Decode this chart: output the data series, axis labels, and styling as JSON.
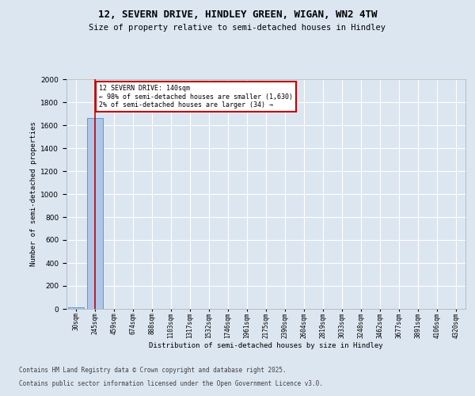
{
  "title1": "12, SEVERN DRIVE, HINDLEY GREEN, WIGAN, WN2 4TW",
  "title2": "Size of property relative to semi-detached houses in Hindley",
  "xlabel": "Distribution of semi-detached houses by size in Hindley",
  "ylabel": "Number of semi-detached properties",
  "categories": [
    "30sqm",
    "245sqm",
    "459sqm",
    "674sqm",
    "888sqm",
    "1103sqm",
    "1317sqm",
    "1532sqm",
    "1746sqm",
    "1961sqm",
    "2175sqm",
    "2390sqm",
    "2604sqm",
    "2819sqm",
    "3033sqm",
    "3248sqm",
    "3462sqm",
    "3677sqm",
    "3891sqm",
    "4106sqm",
    "4320sqm"
  ],
  "values": [
    15,
    1664,
    0,
    0,
    0,
    0,
    0,
    0,
    0,
    0,
    0,
    0,
    0,
    0,
    0,
    0,
    0,
    0,
    0,
    0,
    0
  ],
  "bar_color": "#aec6e8",
  "bar_edge_color": "#5b9bd5",
  "highlight_index": 1,
  "highlight_color": "#c00000",
  "property_label": "12 SEVERN DRIVE: 140sqm",
  "annotation_line1": "← 98% of semi-detached houses are smaller (1,630)",
  "annotation_line2": "2% of semi-detached houses are larger (34) →",
  "ylim": [
    0,
    2000
  ],
  "yticks": [
    0,
    200,
    400,
    600,
    800,
    1000,
    1200,
    1400,
    1600,
    1800,
    2000
  ],
  "bg_color": "#dce6f1",
  "plot_bg_color": "#dce6f1",
  "footer1": "Contains HM Land Registry data © Crown copyright and database right 2025.",
  "footer2": "Contains public sector information licensed under the Open Government Licence v3.0."
}
